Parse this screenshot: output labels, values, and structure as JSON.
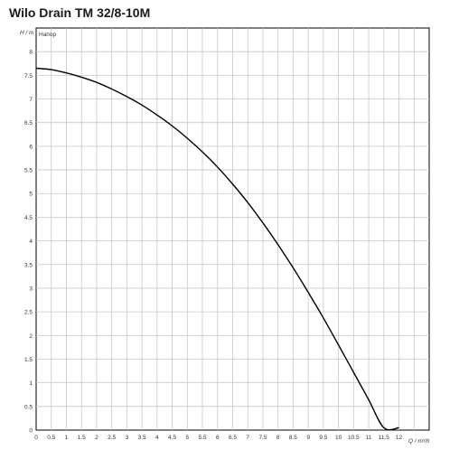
{
  "chart_data": {
    "type": "line",
    "title": "Wilo Drain TM 32/8-10M",
    "xlabel": "Q / m³/h",
    "ylabel": "H / m",
    "xlim": [
      0,
      13
    ],
    "ylim": [
      0,
      8.5
    ],
    "x_ticks": [
      "0",
      "0.5",
      "1",
      "1.5",
      "2",
      "2.5",
      "3",
      "3.5",
      "4",
      "4.5",
      "5",
      "5.5",
      "6",
      "6.5",
      "7",
      "7.5",
      "8",
      "8.5",
      "9",
      "9.5",
      "10",
      "10.5",
      "11",
      "11.5",
      "12"
    ],
    "y_ticks": [
      "0",
      "0.5",
      "1",
      "1.5",
      "2",
      "2.5",
      "3",
      "3.5",
      "4",
      "4.5",
      "5",
      "5.5",
      "6",
      "6.5",
      "7",
      "7.5",
      "8"
    ],
    "grid": true,
    "series": [
      {
        "name": "Напор",
        "color": "#000000",
        "x": [
          0,
          0.5,
          1,
          1.5,
          2,
          2.5,
          3,
          3.5,
          4,
          4.5,
          5,
          5.5,
          6,
          6.5,
          7,
          7.5,
          8,
          8.5,
          9,
          9.5,
          10,
          10.5,
          11,
          11.5,
          12
        ],
        "y": [
          7.65,
          7.62,
          7.55,
          7.46,
          7.35,
          7.21,
          7.05,
          6.87,
          6.66,
          6.43,
          6.17,
          5.88,
          5.56,
          5.2,
          4.81,
          4.38,
          3.92,
          3.43,
          2.91,
          2.37,
          1.8,
          1.22,
          0.64,
          0.05,
          0.05
        ]
      }
    ]
  }
}
